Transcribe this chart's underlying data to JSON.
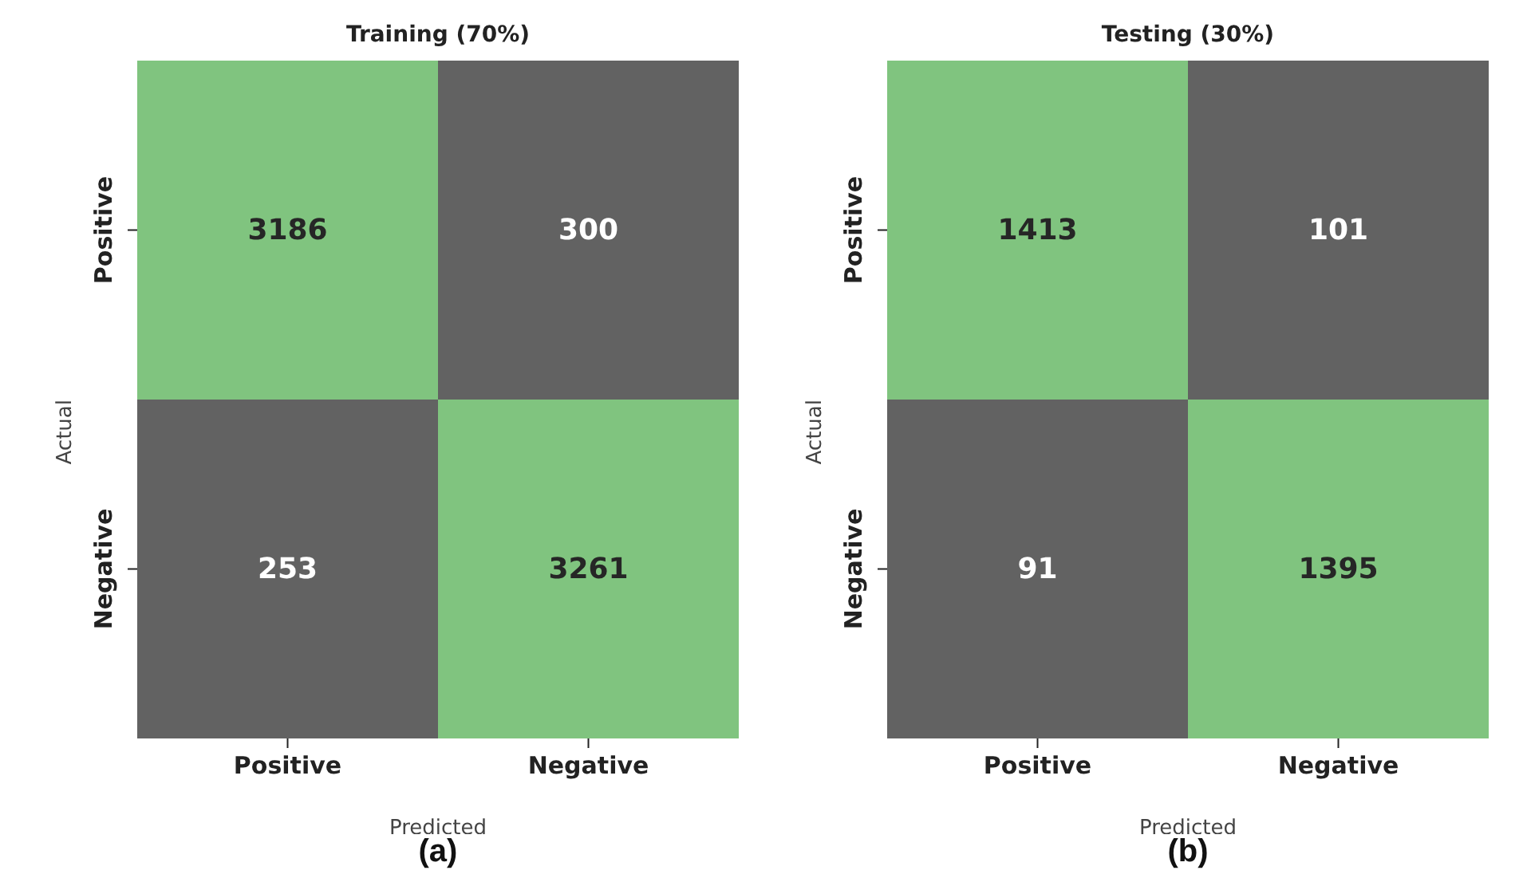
{
  "chart_data": [
    {
      "type": "heatmap",
      "title": "Training (70%)",
      "xlabel": "Predicted",
      "ylabel": "Actual",
      "categories": [
        "Positive",
        "Negative"
      ],
      "y_categories": [
        "Positive",
        "Negative"
      ],
      "cells": [
        [
          3186,
          300
        ],
        [
          253,
          3261
        ]
      ],
      "data_labels": true,
      "colors": [
        "#626262",
        "#80c47f"
      ],
      "annotations": [
        "(a)"
      ]
    },
    {
      "type": "heatmap",
      "title": "Testing (30%)",
      "xlabel": "Predicted",
      "ylabel": "Actual",
      "categories": [
        "Positive",
        "Negative"
      ],
      "y_categories": [
        "Positive",
        "Negative"
      ],
      "cells": [
        [
          1413,
          101
        ],
        [
          91,
          1395
        ]
      ],
      "data_labels": true,
      "colors": [
        "#626262",
        "#80c47f"
      ],
      "annotations": [
        "(b)"
      ]
    }
  ]
}
